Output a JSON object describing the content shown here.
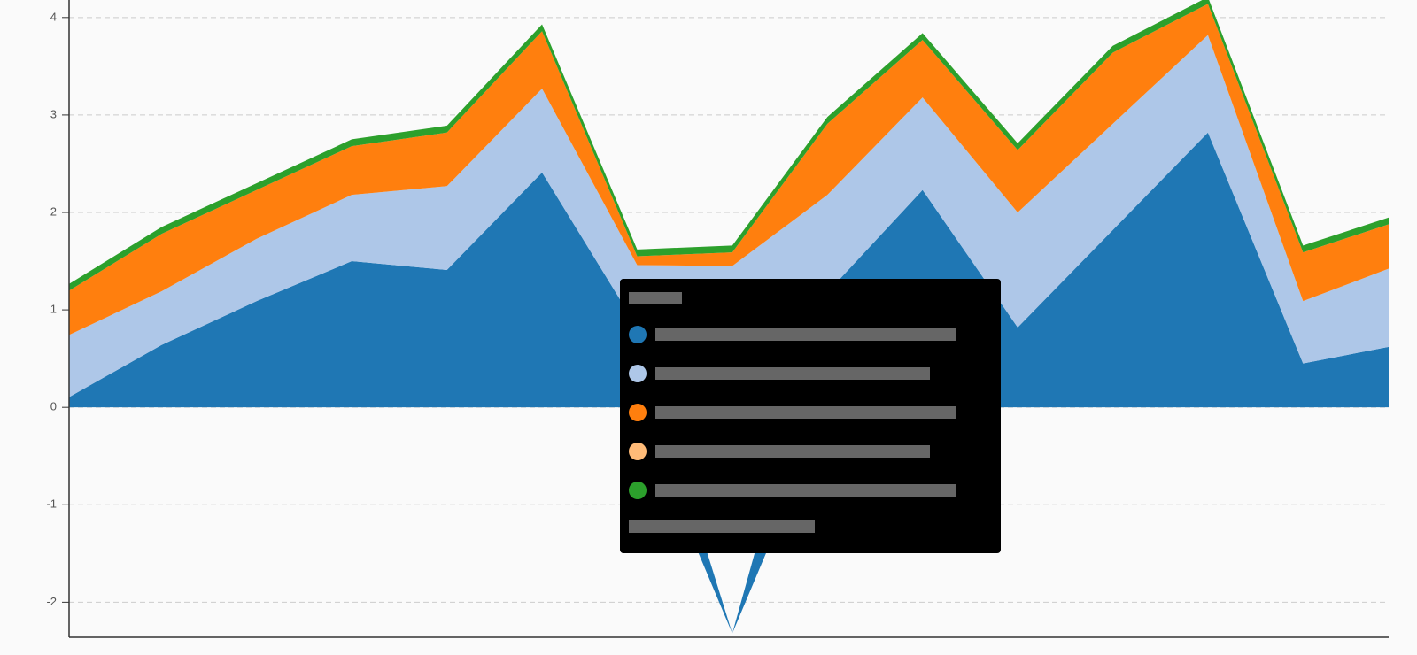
{
  "chart_data": {
    "type": "area",
    "stacked": true,
    "x": [
      0,
      1,
      2,
      3,
      4,
      5,
      6,
      7,
      8,
      9,
      10,
      11,
      12,
      13,
      14
    ],
    "xlim": [
      0,
      13.9
    ],
    "series": [
      {
        "color": "#1f77b4",
        "values": [
          0.09,
          0.64,
          1.09,
          1.5,
          1.41,
          2.41,
          0.82,
          -2.32,
          1.18,
          2.23,
          0.82,
          1.82,
          2.82,
          0.45,
          0.64
        ]
      },
      {
        "color": "#aec7e8",
        "values": [
          0.64,
          0.55,
          0.64,
          0.68,
          0.86,
          0.86,
          0.64,
          1.45,
          1.0,
          0.95,
          1.18,
          1.09,
          1.0,
          0.64,
          0.82
        ]
      },
      {
        "color": "#ff7f0e",
        "values": [
          0.45,
          0.59,
          0.5,
          0.5,
          0.55,
          0.59,
          0.09,
          0.14,
          0.73,
          0.59,
          0.64,
          0.73,
          0.32,
          0.5,
          0.45
        ]
      },
      {
        "color": "#ffbb78",
        "values": [
          0,
          0,
          0,
          0,
          0,
          0,
          0,
          0,
          0,
          0,
          0,
          0,
          0,
          0,
          0
        ]
      },
      {
        "color": "#2ca02c",
        "values": [
          0.07,
          0.07,
          0.07,
          0.07,
          0.07,
          0.07,
          0.07,
          0.07,
          0.07,
          0.07,
          0.07,
          0.07,
          0.07,
          0.07,
          0.07
        ]
      }
    ],
    "ylim": [
      -2.36,
      4.18
    ],
    "yticks": [
      -2,
      -1,
      0,
      1,
      2,
      3,
      4
    ],
    "grid": true
  }
}
